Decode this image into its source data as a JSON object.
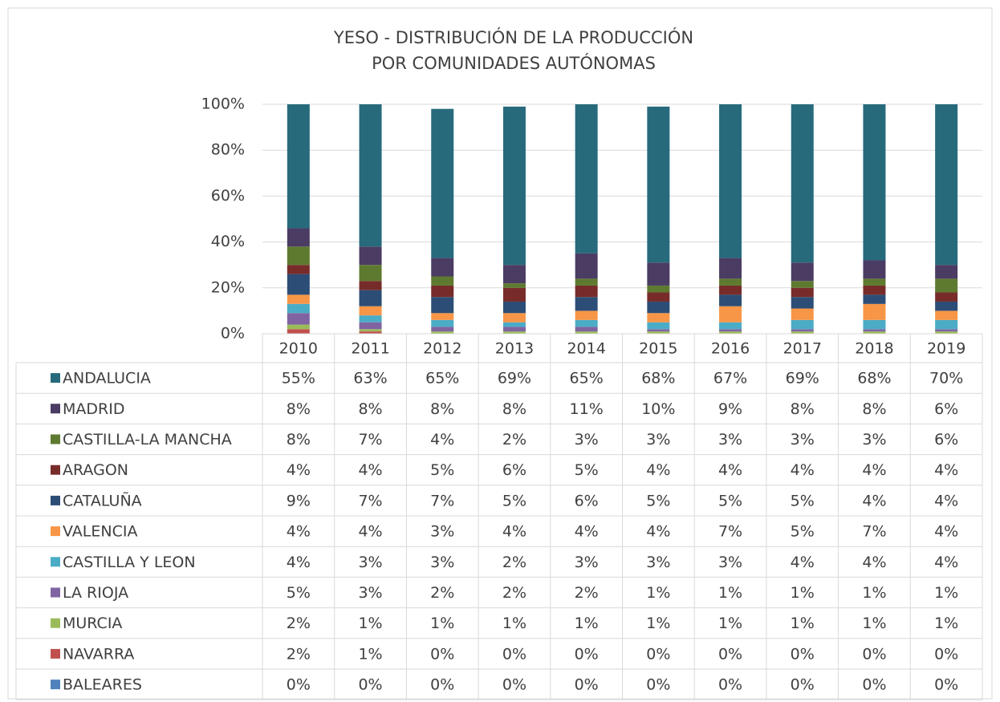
{
  "chart_data": {
    "type": "bar",
    "stacked": true,
    "title": [
      "YESO - DISTRIBUCIÓN DE LA PRODUCCIÓN",
      "POR COMUNIDADES AUTÓNOMAS"
    ],
    "categories": [
      "2010",
      "2011",
      "2012",
      "2013",
      "2014",
      "2015",
      "2016",
      "2017",
      "2018",
      "2019"
    ],
    "ylim": [
      0,
      100
    ],
    "yticks": [
      {
        "value": 0,
        "label": "0%"
      },
      {
        "value": 20,
        "label": "20%"
      },
      {
        "value": 40,
        "label": "40%"
      },
      {
        "value": 60,
        "label": "60%"
      },
      {
        "value": 80,
        "label": "80%"
      },
      {
        "value": 100,
        "label": "100%"
      }
    ],
    "grid": true,
    "series": [
      {
        "name": "ANDALUCIA",
        "color": "#266a7c",
        "values": [
          55,
          63,
          65,
          69,
          65,
          68,
          67,
          69,
          68,
          70
        ],
        "value_labels": [
          "55%",
          "63%",
          "65%",
          "69%",
          "65%",
          "68%",
          "67%",
          "69%",
          "68%",
          "70%"
        ]
      },
      {
        "name": "MADRID",
        "color": "#4b3c63",
        "values": [
          8,
          8,
          8,
          8,
          11,
          10,
          9,
          8,
          8,
          6
        ],
        "value_labels": [
          "8%",
          "8%",
          "8%",
          "8%",
          "11%",
          "10%",
          "9%",
          "8%",
          "8%",
          "6%"
        ]
      },
      {
        "name": "CASTILLA-LA MANCHA",
        "color": "#5e7a30",
        "values": [
          8,
          7,
          4,
          2,
          3,
          3,
          3,
          3,
          3,
          6
        ],
        "value_labels": [
          "8%",
          "7%",
          "4%",
          "2%",
          "3%",
          "3%",
          "3%",
          "3%",
          "3%",
          "6%"
        ]
      },
      {
        "name": "ARAGON",
        "color": "#772c2a",
        "values": [
          4,
          4,
          5,
          6,
          5,
          4,
          4,
          4,
          4,
          4
        ],
        "value_labels": [
          "4%",
          "4%",
          "5%",
          "6%",
          "5%",
          "4%",
          "4%",
          "4%",
          "4%",
          "4%"
        ]
      },
      {
        "name": "CATALUÑA",
        "color": "#2c4d76",
        "values": [
          9,
          7,
          7,
          5,
          6,
          5,
          5,
          5,
          4,
          4
        ],
        "value_labels": [
          "9%",
          "7%",
          "7%",
          "5%",
          "6%",
          "5%",
          "5%",
          "5%",
          "4%",
          "4%"
        ]
      },
      {
        "name": "VALENCIA",
        "color": "#f79646",
        "values": [
          4,
          4,
          3,
          4,
          4,
          4,
          7,
          5,
          7,
          4
        ],
        "value_labels": [
          "4%",
          "4%",
          "3%",
          "4%",
          "4%",
          "4%",
          "7%",
          "5%",
          "7%",
          "4%"
        ]
      },
      {
        "name": "CASTILLA Y LEON",
        "color": "#4bacc6",
        "values": [
          4,
          3,
          3,
          2,
          3,
          3,
          3,
          4,
          4,
          4
        ],
        "value_labels": [
          "4%",
          "3%",
          "3%",
          "2%",
          "3%",
          "3%",
          "3%",
          "4%",
          "4%",
          "4%"
        ]
      },
      {
        "name": "LA RIOJA",
        "color": "#8064a2",
        "values": [
          5,
          3,
          2,
          2,
          2,
          1,
          1,
          1,
          1,
          1
        ],
        "value_labels": [
          "5%",
          "3%",
          "2%",
          "2%",
          "2%",
          "1%",
          "1%",
          "1%",
          "1%",
          "1%"
        ]
      },
      {
        "name": "MURCIA",
        "color": "#9bbb59",
        "values": [
          2,
          1,
          1,
          1,
          1,
          1,
          1,
          1,
          1,
          1
        ],
        "value_labels": [
          "2%",
          "1%",
          "1%",
          "1%",
          "1%",
          "1%",
          "1%",
          "1%",
          "1%",
          "1%"
        ]
      },
      {
        "name": "NAVARRA",
        "color": "#c0504d",
        "values": [
          2,
          1,
          0,
          0,
          0,
          0,
          0,
          0,
          0,
          0
        ],
        "value_labels": [
          "2%",
          "1%",
          "0%",
          "0%",
          "0%",
          "0%",
          "0%",
          "0%",
          "0%",
          "0%"
        ]
      },
      {
        "name": "BALEARES",
        "color": "#4f81bd",
        "values": [
          0,
          0,
          0,
          0,
          0,
          0,
          0,
          0,
          0,
          0
        ],
        "value_labels": [
          "0%",
          "0%",
          "0%",
          "0%",
          "0%",
          "0%",
          "0%",
          "0%",
          "0%",
          "0%"
        ]
      }
    ]
  }
}
